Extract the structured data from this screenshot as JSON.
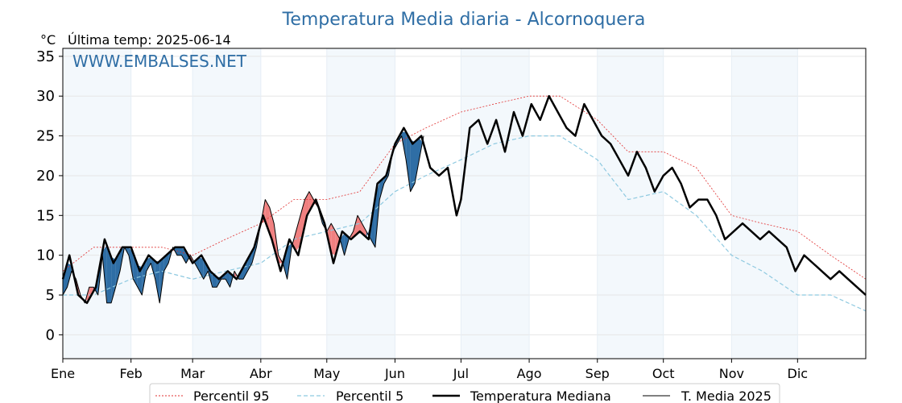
{
  "chart_data": {
    "type": "line",
    "title": "Temperatura Media diaria - Alcornoquera",
    "ylabel": "°C",
    "subtitle": "Última temp: 2025-06-14",
    "watermark": "WWW.EMBALSES.NET",
    "ylim": [
      -3,
      36
    ],
    "xlim": [
      1,
      366
    ],
    "yticks": [
      0,
      5,
      10,
      15,
      20,
      25,
      30,
      35
    ],
    "grid": true,
    "legend_position": "bottom",
    "months": [
      {
        "label": "Ene",
        "day": 1
      },
      {
        "label": "Feb",
        "day": 32
      },
      {
        "label": "Mar",
        "day": 60
      },
      {
        "label": "Abr",
        "day": 91
      },
      {
        "label": "May",
        "day": 121
      },
      {
        "label": "Jun",
        "day": 152
      },
      {
        "label": "Jul",
        "day": 182
      },
      {
        "label": "Ago",
        "day": 213
      },
      {
        "label": "Sep",
        "day": 244
      },
      {
        "label": "Oct",
        "day": 274
      },
      {
        "label": "Nov",
        "day": 305
      },
      {
        "label": "Dic",
        "day": 335
      }
    ],
    "series": [
      {
        "name": "Percentil 95",
        "style": "dotted",
        "color": "#e03030",
        "x": [
          1,
          15,
          32,
          46,
          60,
          75,
          91,
          106,
          121,
          136,
          152,
          166,
          182,
          197,
          213,
          227,
          244,
          258,
          274,
          289,
          305,
          319,
          335,
          350,
          366
        ],
        "y": [
          8,
          11,
          11,
          11,
          10,
          12,
          14,
          17,
          17,
          18,
          24,
          26,
          28,
          29,
          30,
          30,
          27,
          23,
          23,
          21,
          15,
          14,
          13,
          10,
          7
        ]
      },
      {
        "name": "Percentil 5",
        "style": "dashed",
        "color": "#8ec9e0",
        "x": [
          1,
          15,
          32,
          46,
          60,
          75,
          91,
          106,
          121,
          136,
          152,
          166,
          182,
          197,
          213,
          227,
          244,
          258,
          274,
          289,
          305,
          319,
          335,
          350,
          366
        ],
        "y": [
          5,
          5,
          7,
          8,
          7,
          8,
          9,
          12,
          13,
          14,
          18,
          20,
          22,
          24,
          25,
          25,
          22,
          17,
          18,
          15,
          10,
          8,
          5,
          5,
          3
        ]
      },
      {
        "name": "Temperatura Mediana",
        "style": "solid-thick",
        "color": "#000000",
        "x": [
          1,
          4,
          8,
          12,
          16,
          20,
          24,
          28,
          32,
          36,
          40,
          44,
          48,
          52,
          56,
          60,
          64,
          68,
          72,
          76,
          80,
          84,
          88,
          92,
          96,
          100,
          104,
          108,
          112,
          116,
          120,
          124,
          128,
          132,
          136,
          140,
          144,
          148,
          152,
          156,
          160,
          164,
          168,
          172,
          176,
          180,
          182,
          186,
          190,
          194,
          198,
          202,
          206,
          210,
          214,
          218,
          222,
          226,
          230,
          234,
          238,
          242,
          246,
          250,
          254,
          258,
          262,
          266,
          270,
          274,
          278,
          282,
          286,
          290,
          294,
          298,
          302,
          306,
          310,
          314,
          318,
          322,
          326,
          330,
          334,
          338,
          342,
          346,
          350,
          354,
          358,
          362,
          366
        ],
        "y": [
          7,
          10,
          5,
          4,
          6,
          12,
          9,
          11,
          11,
          8,
          10,
          9,
          10,
          11,
          11,
          9,
          10,
          8,
          7,
          8,
          7,
          9,
          11,
          15,
          12,
          8,
          12,
          10,
          15,
          17,
          14,
          9,
          13,
          12,
          13,
          12,
          19,
          20,
          24,
          26,
          24,
          25,
          21,
          20,
          21,
          15,
          17,
          26,
          27,
          24,
          27,
          23,
          28,
          25,
          29,
          27,
          30,
          28,
          26,
          25,
          29,
          27,
          25,
          24,
          22,
          20,
          23,
          21,
          18,
          20,
          21,
          19,
          16,
          17,
          17,
          15,
          12,
          13,
          14,
          13,
          12,
          13,
          12,
          11,
          8,
          10,
          9,
          8,
          7,
          8,
          7,
          6,
          5
        ]
      },
      {
        "name": "T. Media 2025",
        "style": "solid-thin",
        "color": "#000000",
        "x": [
          1,
          3,
          5,
          7,
          9,
          11,
          13,
          15,
          17,
          19,
          21,
          23,
          25,
          27,
          29,
          31,
          33,
          35,
          37,
          39,
          41,
          43,
          45,
          47,
          49,
          51,
          53,
          55,
          57,
          59,
          61,
          63,
          65,
          67,
          69,
          71,
          73,
          75,
          77,
          79,
          81,
          83,
          85,
          87,
          89,
          91,
          93,
          95,
          97,
          99,
          101,
          103,
          105,
          107,
          109,
          111,
          113,
          115,
          117,
          119,
          121,
          123,
          125,
          127,
          129,
          131,
          133,
          135,
          137,
          139,
          141,
          143,
          145,
          147,
          149,
          151,
          153,
          155,
          157,
          159,
          161,
          163,
          165
        ],
        "y": [
          5,
          6,
          8,
          7,
          5,
          4,
          6,
          6,
          5,
          10,
          4,
          4,
          6,
          8,
          11,
          10,
          7,
          6,
          5,
          8,
          9,
          7,
          4,
          8,
          9,
          11,
          10,
          10,
          9,
          10,
          9,
          8,
          7,
          8,
          6,
          6,
          7,
          7,
          6,
          8,
          7,
          7,
          8,
          9,
          11,
          14,
          17,
          16,
          14,
          10,
          9,
          7,
          11,
          13,
          15,
          17,
          18,
          17,
          16,
          14,
          13,
          14,
          13,
          12,
          10,
          12,
          13,
          15,
          14,
          13,
          12,
          11,
          17,
          19,
          20,
          23,
          24,
          25,
          22,
          18,
          19,
          22,
          25
        ]
      }
    ]
  },
  "legend": [
    {
      "label": "Percentil 95"
    },
    {
      "label": "Percentil 5"
    },
    {
      "label": "Temperatura Mediana"
    },
    {
      "label": "T. Media 2025"
    }
  ]
}
